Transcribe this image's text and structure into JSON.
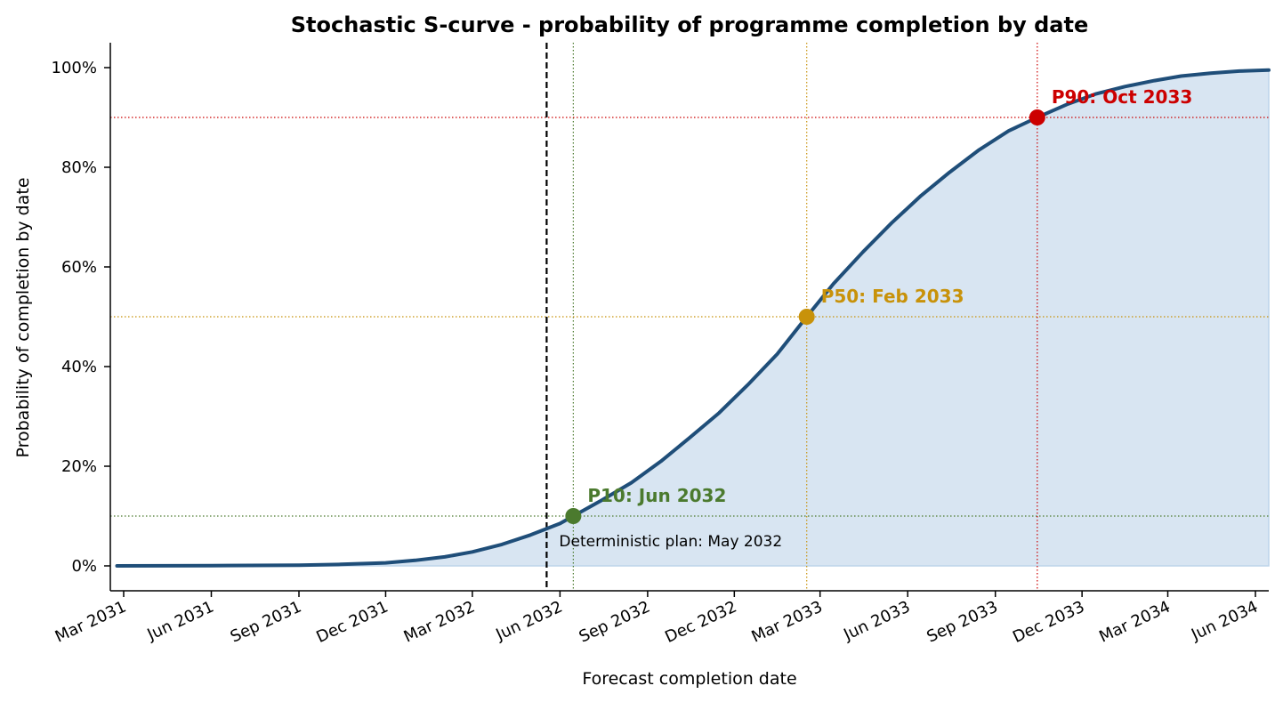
{
  "chart_data": {
    "type": "line",
    "title": "Stochastic S-curve - probability of programme completion by date",
    "xlabel": "Forecast completion date",
    "ylabel": "Probability of completion by date",
    "xlim": [
      "2031-02-15",
      "2034-06-15"
    ],
    "ylim": [
      -0.05,
      1.05
    ],
    "x_ticks": [
      {
        "date": "2031-03-01",
        "label": "Mar 2031"
      },
      {
        "date": "2031-06-01",
        "label": "Jun 2031"
      },
      {
        "date": "2031-09-01",
        "label": "Sep 2031"
      },
      {
        "date": "2031-12-01",
        "label": "Dec 2031"
      },
      {
        "date": "2032-03-01",
        "label": "Mar 2032"
      },
      {
        "date": "2032-06-01",
        "label": "Jun 2032"
      },
      {
        "date": "2032-09-01",
        "label": "Sep 2032"
      },
      {
        "date": "2032-12-01",
        "label": "Dec 2032"
      },
      {
        "date": "2033-03-01",
        "label": "Mar 2033"
      },
      {
        "date": "2033-06-01",
        "label": "Jun 2033"
      },
      {
        "date": "2033-09-01",
        "label": "Sep 2033"
      },
      {
        "date": "2033-12-01",
        "label": "Dec 2033"
      },
      {
        "date": "2034-03-01",
        "label": "Mar 2034"
      },
      {
        "date": "2034-06-01",
        "label": "Jun 2034"
      }
    ],
    "y_ticks": [
      {
        "value": 0,
        "label": "0%"
      },
      {
        "value": 0.2,
        "label": "20%"
      },
      {
        "value": 0.4,
        "label": "40%"
      },
      {
        "value": 0.6,
        "label": "60%"
      },
      {
        "value": 0.8,
        "label": "80%"
      },
      {
        "value": 1.0,
        "label": "100%"
      }
    ],
    "series": [
      {
        "color": "#1f4e79",
        "fill_color": "#d8e5f2",
        "points": [
          {
            "x": "2031-02-22",
            "y": 0.0
          },
          {
            "x": "2031-06-01",
            "y": 0.0005
          },
          {
            "x": "2031-09-01",
            "y": 0.0015
          },
          {
            "x": "2031-10-15",
            "y": 0.003
          },
          {
            "x": "2031-12-01",
            "y": 0.006
          },
          {
            "x": "2032-01-01",
            "y": 0.011
          },
          {
            "x": "2032-02-01",
            "y": 0.018
          },
          {
            "x": "2032-03-01",
            "y": 0.028
          },
          {
            "x": "2032-04-01",
            "y": 0.043
          },
          {
            "x": "2032-05-01",
            "y": 0.062
          },
          {
            "x": "2032-06-01",
            "y": 0.085
          },
          {
            "x": "2032-06-15",
            "y": 0.1
          },
          {
            "x": "2032-07-15",
            "y": 0.132
          },
          {
            "x": "2032-08-15",
            "y": 0.167
          },
          {
            "x": "2032-09-15",
            "y": 0.21
          },
          {
            "x": "2032-10-15",
            "y": 0.257
          },
          {
            "x": "2032-11-15",
            "y": 0.307
          },
          {
            "x": "2032-12-15",
            "y": 0.363
          },
          {
            "x": "2033-01-15",
            "y": 0.425
          },
          {
            "x": "2033-02-15",
            "y": 0.5
          },
          {
            "x": "2033-03-15",
            "y": 0.566
          },
          {
            "x": "2033-04-15",
            "y": 0.63
          },
          {
            "x": "2033-05-15",
            "y": 0.688
          },
          {
            "x": "2033-06-15",
            "y": 0.743
          },
          {
            "x": "2033-07-15",
            "y": 0.79
          },
          {
            "x": "2033-08-15",
            "y": 0.835
          },
          {
            "x": "2033-09-15",
            "y": 0.873
          },
          {
            "x": "2033-10-15",
            "y": 0.9
          },
          {
            "x": "2033-11-15",
            "y": 0.926
          },
          {
            "x": "2033-12-15",
            "y": 0.947
          },
          {
            "x": "2034-01-15",
            "y": 0.962
          },
          {
            "x": "2034-02-15",
            "y": 0.974
          },
          {
            "x": "2034-03-15",
            "y": 0.983
          },
          {
            "x": "2034-04-15",
            "y": 0.989
          },
          {
            "x": "2034-05-15",
            "y": 0.993
          },
          {
            "x": "2034-06-15",
            "y": 0.995
          }
        ]
      }
    ],
    "markers": [
      {
        "name": "P10",
        "x": "2032-06-15",
        "y": 0.1,
        "label": "P10: Jun 2032",
        "color": "#4b7a2e"
      },
      {
        "name": "P50",
        "x": "2033-02-15",
        "y": 0.5,
        "label": "P50: Feb 2033",
        "color": "#c8920a"
      },
      {
        "name": "P90",
        "x": "2033-10-15",
        "y": 0.9,
        "label": "P90: Oct 2033",
        "color": "#cc0000"
      }
    ],
    "deterministic": {
      "x": "2032-05-18",
      "label": "Deterministic plan: May 2032",
      "color": "#000000"
    },
    "grid": false
  }
}
